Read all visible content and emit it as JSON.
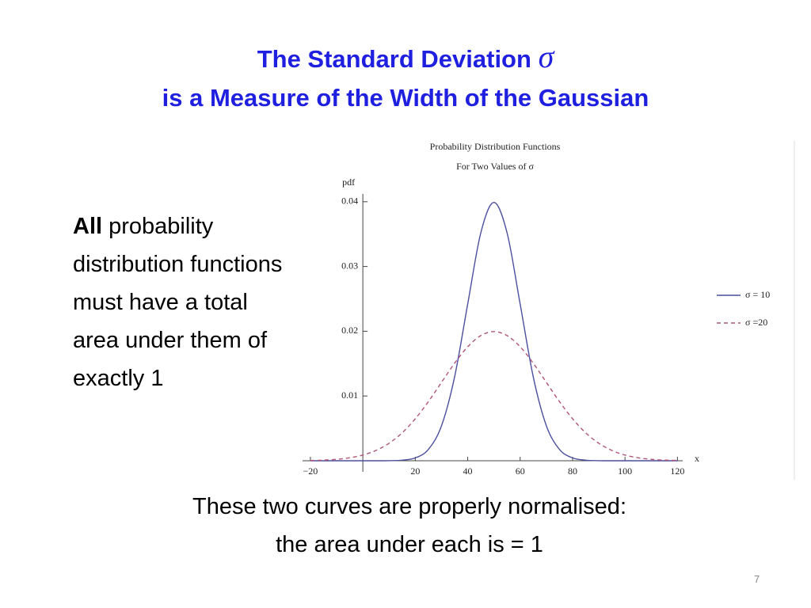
{
  "header": {
    "title_line1": "The Standard Deviation",
    "title_symbol": "σ",
    "title_line2": "is a Measure of the Width of the Gaussian"
  },
  "paragraph": {
    "bold": "All",
    "text": "probability distribution functions must have a total area under them of exactly 1"
  },
  "footer": {
    "line1": "These two curves are properly normalised:",
    "line2": "the area under each is = 1",
    "page_number": "7"
  },
  "chart_data": {
    "type": "line",
    "title": [
      "Probability Distribution Functions",
      "For Two Values of σ"
    ],
    "x_label": "x",
    "y_label": "pdf",
    "x": [
      -20,
      -15,
      -10,
      -5,
      0,
      5,
      10,
      15,
      20,
      25,
      30,
      35,
      40,
      45,
      50,
      55,
      60,
      65,
      70,
      75,
      80,
      85,
      90,
      95,
      100,
      105,
      110,
      115,
      120
    ],
    "series": [
      {
        "name": "σ = 10",
        "color": "#4b4f9e",
        "line_style": "solid",
        "values": [
          0,
          0,
          0,
          0,
          0,
          0,
          1e-05,
          9e-05,
          0.00044,
          0.00175,
          0.0054,
          0.01295,
          0.0242,
          0.03521,
          0.03989,
          0.03521,
          0.0242,
          0.01295,
          0.0054,
          0.00175,
          0.00044,
          9e-05,
          1e-05,
          0,
          0,
          0,
          0,
          0,
          0
        ]
      },
      {
        "name": "σ =20",
        "color": "#b0557a",
        "line_style": "dashed",
        "values": [
          4e-05,
          0.0001,
          0.00022,
          0.00046,
          0.00088,
          0.00159,
          0.0027,
          0.00431,
          0.00648,
          0.00913,
          0.0121,
          0.01506,
          0.0176,
          0.01933,
          0.01995,
          0.01933,
          0.0176,
          0.01506,
          0.0121,
          0.00913,
          0.00648,
          0.00431,
          0.0027,
          0.00159,
          0.00088,
          0.00046,
          0.00022,
          0.0001,
          4e-05
        ]
      }
    ],
    "xlim": [
      -23,
      122
    ],
    "ylim": [
      0,
      0.0412
    ],
    "xticks": [
      {
        "value": -20,
        "label": "−20"
      },
      20,
      40,
      60,
      80,
      100,
      120
    ],
    "yticks": [
      0.01,
      0.02,
      0.03,
      0.04
    ]
  }
}
